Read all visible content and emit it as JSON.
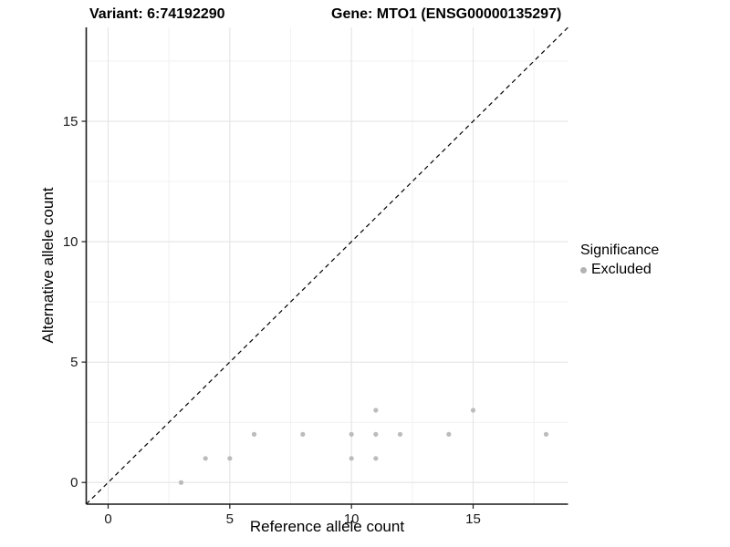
{
  "titles": {
    "variant": "Variant: 6:74192290",
    "gene": "Gene: MTO1 (ENSG00000135297)"
  },
  "axes": {
    "x": {
      "label": "Reference allele count",
      "ticks": [
        0,
        5,
        10,
        15
      ],
      "minor_ticks": [
        2.5,
        7.5,
        12.5,
        17.5
      ],
      "range": [
        -0.9,
        18.9
      ]
    },
    "y": {
      "label": "Alternative allele count",
      "ticks": [
        0,
        5,
        10,
        15
      ],
      "minor_ticks": [
        2.5,
        7.5,
        12.5,
        17.5
      ],
      "range": [
        -0.9,
        18.9
      ]
    }
  },
  "legend": {
    "title": "Significance",
    "items": [
      {
        "label": "Excluded",
        "color": "#b3b3b3"
      }
    ]
  },
  "colors": {
    "point": "#bcbcbc",
    "major_grid": "#e4e4e4",
    "minor_grid": "#f2f2f2",
    "axis_line": "#1a1a1a",
    "reference_line": "#000000"
  },
  "chart_data": {
    "type": "scatter",
    "title": "Variant: 6:74192290   Gene: MTO1 (ENSG00000135297)",
    "xlabel": "Reference allele count",
    "ylabel": "Alternative allele count",
    "xlim": [
      0,
      18
    ],
    "ylim": [
      0,
      18
    ],
    "grid": "major+minor",
    "legend_position": "right",
    "series": [
      {
        "name": "Excluded",
        "color": "#bcbcbc",
        "points": [
          [
            3,
            0
          ],
          [
            4,
            1
          ],
          [
            5,
            1
          ],
          [
            6,
            2
          ],
          [
            8,
            2
          ],
          [
            10,
            1
          ],
          [
            10,
            2
          ],
          [
            11,
            1
          ],
          [
            11,
            2
          ],
          [
            11,
            3
          ],
          [
            12,
            2
          ],
          [
            14,
            2
          ],
          [
            15,
            3
          ],
          [
            18,
            2
          ]
        ]
      }
    ],
    "reference_line": {
      "type": "identity",
      "slope": 1,
      "intercept": 0,
      "style": "dashed",
      "color": "#000000"
    }
  }
}
